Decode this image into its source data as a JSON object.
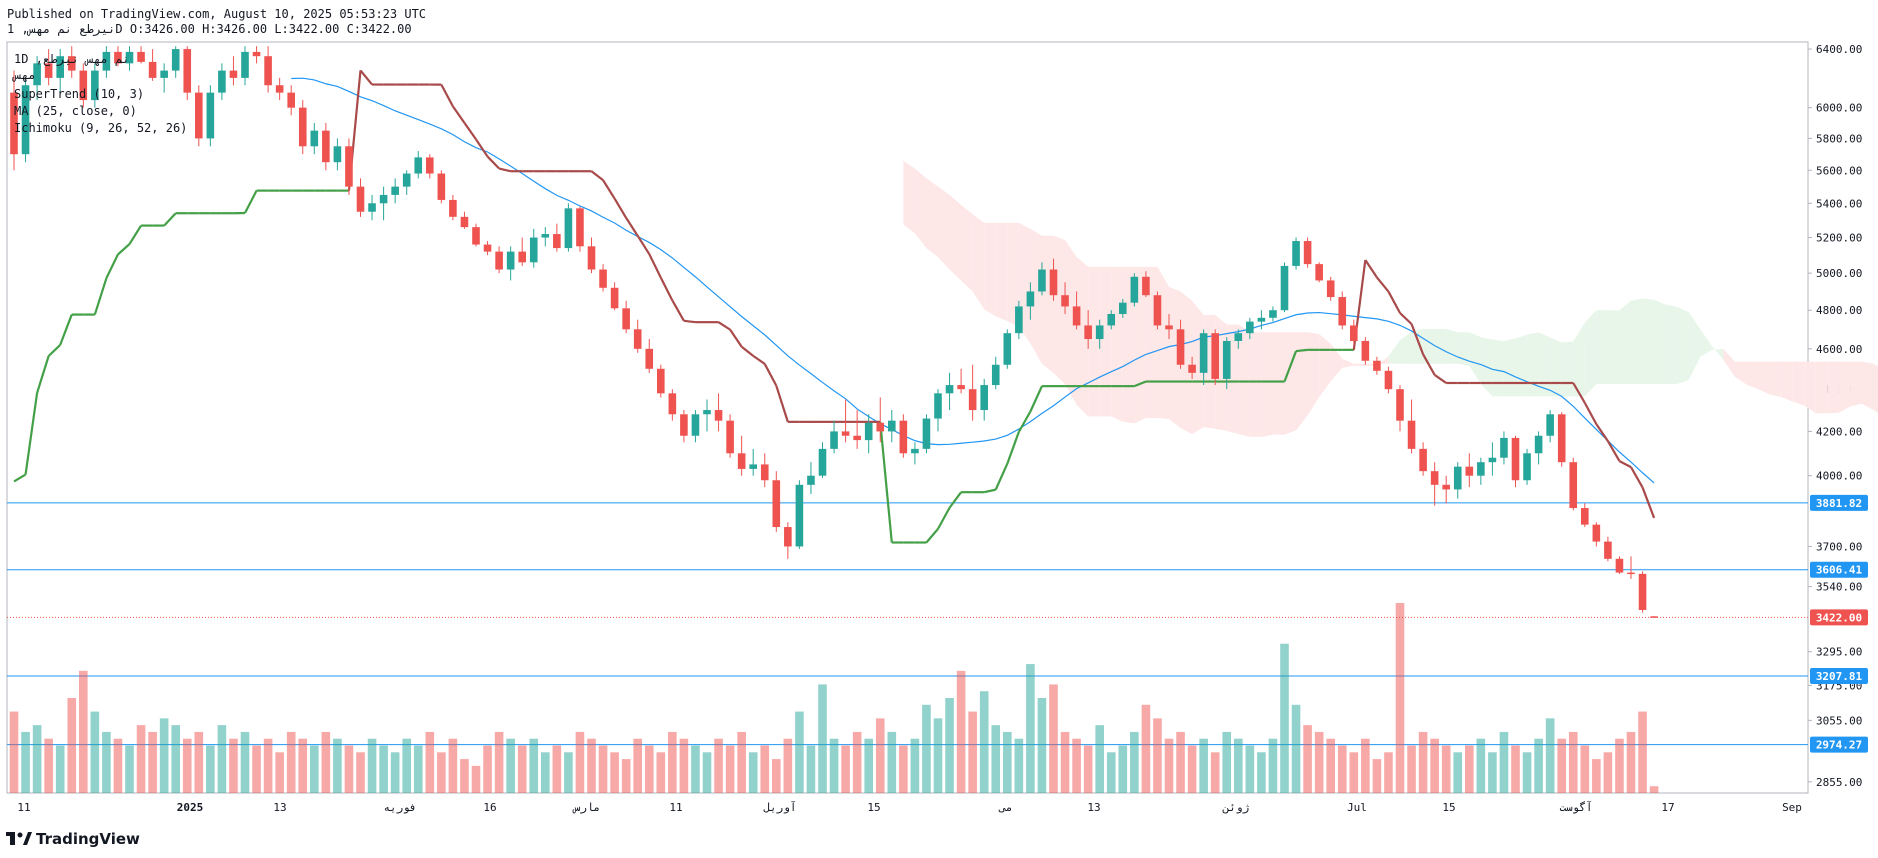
{
  "header": {
    "published": "Published on TradingView.com, August 10, 2025 05:53:23 UTC",
    "ohlc": "نيرطع نم مهس, 1D O:3426.00 H:3426.00 L:3422.00 C:3422.00"
  },
  "legend": {
    "interval": "1D ,نم مهس نيرطع",
    "line2": "مهس",
    "supertrend": "SuperTrend (10, 3)",
    "ma": "MA (25, close, 0)",
    "ichimoku": "Ichimoku (9, 26, 52, 26)"
  },
  "brand": {
    "name": "TradingView"
  },
  "colors": {
    "up": "#26a69a",
    "down": "#ef5350",
    "supertrend_up": "#43a047",
    "supertrend_down": "#a84a4a",
    "ma": "#2196f3",
    "cloud_bull": "#e8f5e9",
    "cloud_bear": "#fde7e7",
    "hline": "#2196f3",
    "last_price": "#ef5350"
  },
  "chart_data": {
    "type": "candlestick",
    "y_scale": "log",
    "y_ticks": [
      "6400.00",
      "6000.00",
      "5800.00",
      "5600.00",
      "5400.00",
      "5200.00",
      "5000.00",
      "4800.00",
      "4600.00",
      "4400.00",
      "4200.00",
      "4000.00",
      "3700.00",
      "3540.00",
      "3295.00",
      "3175.00",
      "3055.00",
      "2855.00"
    ],
    "x_ticks": [
      "11",
      "2025",
      "13",
      "فوريه",
      "16",
      "مارس",
      "11",
      "آوريل",
      "15",
      "مى",
      "13",
      "ژوئن",
      "Jul",
      "15",
      "آگوست",
      "17",
      "Sep"
    ],
    "price_levels": [
      {
        "value": 3881.82,
        "label": "3881.82"
      },
      {
        "value": 3606.41,
        "label": "3606.41"
      },
      {
        "value": 3207.81,
        "label": "3207.81"
      },
      {
        "value": 2974.27,
        "label": "2974.27"
      }
    ],
    "last_price": {
      "value": 3422.0,
      "label": "3422.00"
    },
    "candles": [
      [
        6100,
        6250,
        5600,
        5700,
        12
      ],
      [
        5700,
        6200,
        5650,
        6150,
        9
      ],
      [
        6150,
        6350,
        6050,
        6300,
        10
      ],
      [
        6300,
        6400,
        6150,
        6200,
        8
      ],
      [
        6200,
        6400,
        6100,
        6350,
        7
      ],
      [
        6350,
        6420,
        6200,
        6250,
        14
      ],
      [
        6250,
        6300,
        6000,
        6050,
        18
      ],
      [
        6050,
        6300,
        6000,
        6250,
        12
      ],
      [
        6250,
        6420,
        6200,
        6380,
        9
      ],
      [
        6380,
        6420,
        6280,
        6300,
        8
      ],
      [
        6300,
        6420,
        6250,
        6380,
        7
      ],
      [
        6380,
        6420,
        6300,
        6310,
        10
      ],
      [
        6310,
        6400,
        6180,
        6200,
        9
      ],
      [
        6200,
        6300,
        6100,
        6250,
        11
      ],
      [
        6250,
        6420,
        6200,
        6400,
        10
      ],
      [
        6400,
        6420,
        6050,
        6100,
        8
      ],
      [
        6100,
        6150,
        5750,
        5800,
        9
      ],
      [
        5800,
        6150,
        5750,
        6100,
        7
      ],
      [
        6100,
        6300,
        6050,
        6250,
        10
      ],
      [
        6250,
        6350,
        6150,
        6200,
        8
      ],
      [
        6200,
        6420,
        6150,
        6380,
        9
      ],
      [
        6380,
        6420,
        6300,
        6350,
        7
      ],
      [
        6350,
        6420,
        6100,
        6150,
        8
      ],
      [
        6150,
        6200,
        6050,
        6100,
        6
      ],
      [
        6100,
        6150,
        5950,
        6000,
        9
      ],
      [
        6000,
        6050,
        5700,
        5750,
        8
      ],
      [
        5750,
        5900,
        5700,
        5850,
        7
      ],
      [
        5850,
        5900,
        5600,
        5650,
        9
      ],
      [
        5650,
        5800,
        5600,
        5750,
        8
      ],
      [
        5750,
        5800,
        5450,
        5500,
        7
      ],
      [
        5500,
        5550,
        5320,
        5350,
        6
      ],
      [
        5350,
        5450,
        5300,
        5400,
        8
      ],
      [
        5400,
        5500,
        5300,
        5450,
        7
      ],
      [
        5450,
        5550,
        5400,
        5500,
        6
      ],
      [
        5500,
        5600,
        5450,
        5580,
        8
      ],
      [
        5580,
        5720,
        5550,
        5680,
        7
      ],
      [
        5680,
        5700,
        5550,
        5580,
        9
      ],
      [
        5580,
        5600,
        5400,
        5420,
        6
      ],
      [
        5420,
        5450,
        5300,
        5320,
        8
      ],
      [
        5320,
        5350,
        5250,
        5260,
        5
      ],
      [
        5260,
        5280,
        5150,
        5160,
        4
      ],
      [
        5160,
        5180,
        5100,
        5120,
        7
      ],
      [
        5120,
        5150,
        5000,
        5020,
        9
      ],
      [
        5020,
        5150,
        4960,
        5120,
        8
      ],
      [
        5120,
        5200,
        5040,
        5060,
        7
      ],
      [
        5060,
        5250,
        5030,
        5200,
        8
      ],
      [
        5200,
        5260,
        5150,
        5220,
        6
      ],
      [
        5220,
        5280,
        5120,
        5140,
        7
      ],
      [
        5140,
        5400,
        5120,
        5370,
        6
      ],
      [
        5370,
        5380,
        5120,
        5150,
        9
      ],
      [
        5150,
        5200,
        5000,
        5020,
        8
      ],
      [
        5020,
        5050,
        4900,
        4920,
        7
      ],
      [
        4920,
        4950,
        4800,
        4810,
        6
      ],
      [
        4810,
        4850,
        4680,
        4700,
        5
      ],
      [
        4700,
        4750,
        4580,
        4600,
        8
      ],
      [
        4600,
        4650,
        4480,
        4500,
        7
      ],
      [
        4500,
        4520,
        4360,
        4380,
        6
      ],
      [
        4380,
        4400,
        4250,
        4280,
        9
      ],
      [
        4280,
        4300,
        4150,
        4180,
        8
      ],
      [
        4180,
        4300,
        4150,
        4280,
        7
      ],
      [
        4280,
        4350,
        4200,
        4300,
        6
      ],
      [
        4300,
        4380,
        4200,
        4250,
        8
      ],
      [
        4250,
        4280,
        4080,
        4100,
        7
      ],
      [
        4100,
        4180,
        4000,
        4030,
        9
      ],
      [
        4030,
        4120,
        4000,
        4050,
        6
      ],
      [
        4050,
        4100,
        3950,
        3980,
        7
      ],
      [
        3980,
        4020,
        3760,
        3780,
        5
      ],
      [
        3780,
        3800,
        3650,
        3700,
        8
      ],
      [
        3700,
        3980,
        3690,
        3960,
        12
      ],
      [
        3960,
        4060,
        3920,
        4000,
        7
      ],
      [
        4000,
        4150,
        3990,
        4120,
        16
      ],
      [
        4120,
        4250,
        4100,
        4200,
        8
      ],
      [
        4200,
        4350,
        4150,
        4180,
        7
      ],
      [
        4180,
        4300,
        4120,
        4160,
        9
      ],
      [
        4160,
        4280,
        4100,
        4240,
        8
      ],
      [
        4240,
        4360,
        4150,
        4200,
        11
      ],
      [
        4200,
        4300,
        4150,
        4250,
        9
      ],
      [
        4250,
        4280,
        4080,
        4100,
        7
      ],
      [
        4100,
        4150,
        4050,
        4120,
        8
      ],
      [
        4120,
        4280,
        4100,
        4260,
        13
      ],
      [
        4260,
        4400,
        4200,
        4380,
        11
      ],
      [
        4380,
        4480,
        4300,
        4420,
        14
      ],
      [
        4420,
        4500,
        4380,
        4400,
        18
      ],
      [
        4400,
        4520,
        4250,
        4300,
        12
      ],
      [
        4300,
        4450,
        4250,
        4420,
        15
      ],
      [
        4420,
        4560,
        4400,
        4520,
        10
      ],
      [
        4520,
        4700,
        4500,
        4680,
        9
      ],
      [
        4680,
        4850,
        4650,
        4820,
        8
      ],
      [
        4820,
        4950,
        4750,
        4900,
        19
      ],
      [
        4900,
        5060,
        4880,
        5020,
        14
      ],
      [
        5020,
        5080,
        4850,
        4880,
        16
      ],
      [
        4880,
        4950,
        4780,
        4820,
        9
      ],
      [
        4820,
        4900,
        4700,
        4720,
        8
      ],
      [
        4720,
        4800,
        4600,
        4650,
        7
      ],
      [
        4650,
        4750,
        4600,
        4720,
        10
      ],
      [
        4720,
        4800,
        4700,
        4780,
        6
      ],
      [
        4780,
        4860,
        4760,
        4840,
        7
      ],
      [
        4840,
        5000,
        4820,
        4980,
        9
      ],
      [
        4980,
        5010,
        4870,
        4880,
        13
      ],
      [
        4880,
        4900,
        4700,
        4720,
        11
      ],
      [
        4720,
        4780,
        4650,
        4700,
        8
      ],
      [
        4700,
        4750,
        4500,
        4520,
        9
      ],
      [
        4520,
        4560,
        4450,
        4480,
        7
      ],
      [
        4480,
        4700,
        4420,
        4680,
        8
      ],
      [
        4680,
        4700,
        4420,
        4450,
        6
      ],
      [
        4450,
        4660,
        4400,
        4640,
        9
      ],
      [
        4640,
        4700,
        4600,
        4680,
        8
      ],
      [
        4680,
        4760,
        4650,
        4740,
        7
      ],
      [
        4740,
        4800,
        4700,
        4760,
        6
      ],
      [
        4760,
        4820,
        4740,
        4800,
        8
      ],
      [
        4800,
        5060,
        4790,
        5040,
        22
      ],
      [
        5040,
        5200,
        5020,
        5180,
        13
      ],
      [
        5180,
        5200,
        5030,
        5050,
        10
      ],
      [
        5050,
        5060,
        4950,
        4960,
        9
      ],
      [
        4960,
        4980,
        4850,
        4870,
        8
      ],
      [
        4870,
        4900,
        4700,
        4720,
        7
      ],
      [
        4720,
        4750,
        4620,
        4640,
        6
      ],
      [
        4640,
        4660,
        4520,
        4540,
        8
      ],
      [
        4540,
        4560,
        4470,
        4490,
        5
      ],
      [
        4490,
        4510,
        4380,
        4400,
        6
      ],
      [
        4400,
        4420,
        4200,
        4250,
        28
      ],
      [
        4250,
        4350,
        4100,
        4120,
        7
      ],
      [
        4120,
        4150,
        4000,
        4020,
        9
      ],
      [
        4020,
        4060,
        3870,
        3960,
        8
      ],
      [
        3960,
        4000,
        3880,
        3940,
        7
      ],
      [
        3940,
        4060,
        3900,
        4040,
        6
      ],
      [
        4040,
        4100,
        3950,
        4000,
        7
      ],
      [
        4000,
        4080,
        3960,
        4060,
        8
      ],
      [
        4060,
        4150,
        4000,
        4080,
        6
      ],
      [
        4080,
        4200,
        4050,
        4170,
        9
      ],
      [
        4170,
        4180,
        3950,
        3980,
        7
      ],
      [
        3980,
        4120,
        3960,
        4100,
        6
      ],
      [
        4100,
        4200,
        4050,
        4180,
        8
      ],
      [
        4180,
        4300,
        4150,
        4280,
        11
      ],
      [
        4280,
        4290,
        4040,
        4060,
        8
      ],
      [
        4060,
        4080,
        3850,
        3860,
        9
      ],
      [
        3860,
        3880,
        3780,
        3790,
        7
      ],
      [
        3790,
        3800,
        3700,
        3720,
        5
      ],
      [
        3720,
        3740,
        3640,
        3650,
        6
      ],
      [
        3650,
        3660,
        3590,
        3595,
        8
      ],
      [
        3595,
        3660,
        3570,
        3590,
        9
      ],
      [
        3590,
        3600,
        3440,
        3450,
        12
      ],
      [
        3426,
        3426,
        3422,
        3422,
        1
      ]
    ]
  }
}
